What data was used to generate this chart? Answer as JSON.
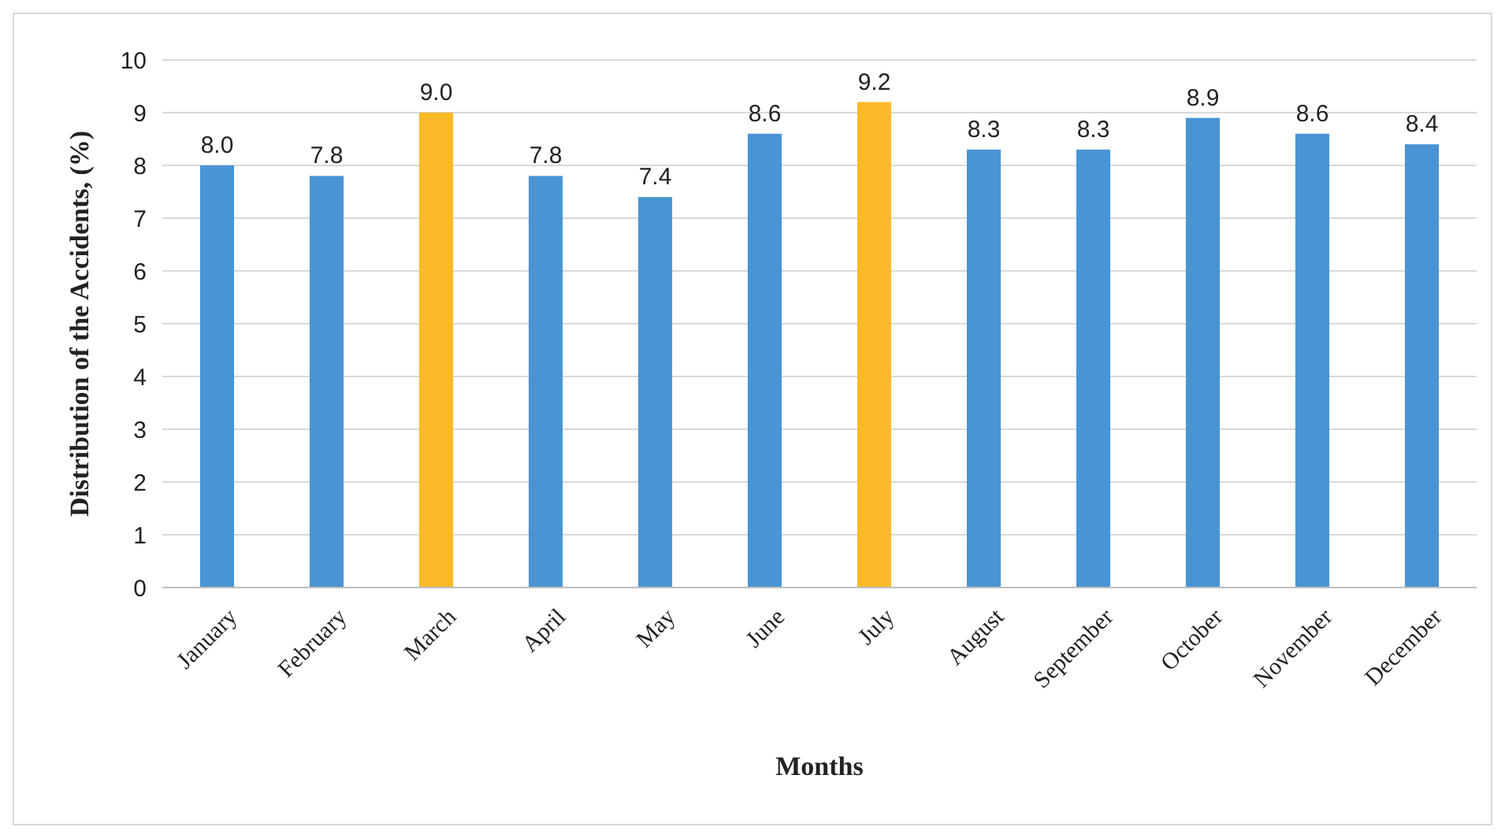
{
  "chart_data": {
    "type": "bar",
    "xlabel": "Months",
    "ylabel": "Distribution of the Accidents, (%)",
    "categories": [
      "January",
      "February",
      "March",
      "April",
      "May",
      "June",
      "July",
      "August",
      "September",
      "October",
      "November",
      "December"
    ],
    "values": [
      8.0,
      7.8,
      9.0,
      7.8,
      7.4,
      8.6,
      9.2,
      8.3,
      8.3,
      8.9,
      8.6,
      8.4
    ],
    "value_labels": [
      "8.0",
      "7.8",
      "9.0",
      "7.8",
      "7.4",
      "8.6",
      "9.2",
      "8.3",
      "8.3",
      "8.9",
      "8.6",
      "8.4"
    ],
    "colors": [
      "#4a94d4",
      "#4a94d4",
      "#fbb928",
      "#4a94d4",
      "#4a94d4",
      "#4a94d4",
      "#fbb928",
      "#4a94d4",
      "#4a94d4",
      "#4a94d4",
      "#4a94d4",
      "#4a94d4"
    ],
    "ylim": [
      0,
      10
    ],
    "yticks": [
      0,
      1,
      2,
      3,
      4,
      5,
      6,
      7,
      8,
      9,
      10
    ],
    "grid": "y"
  }
}
